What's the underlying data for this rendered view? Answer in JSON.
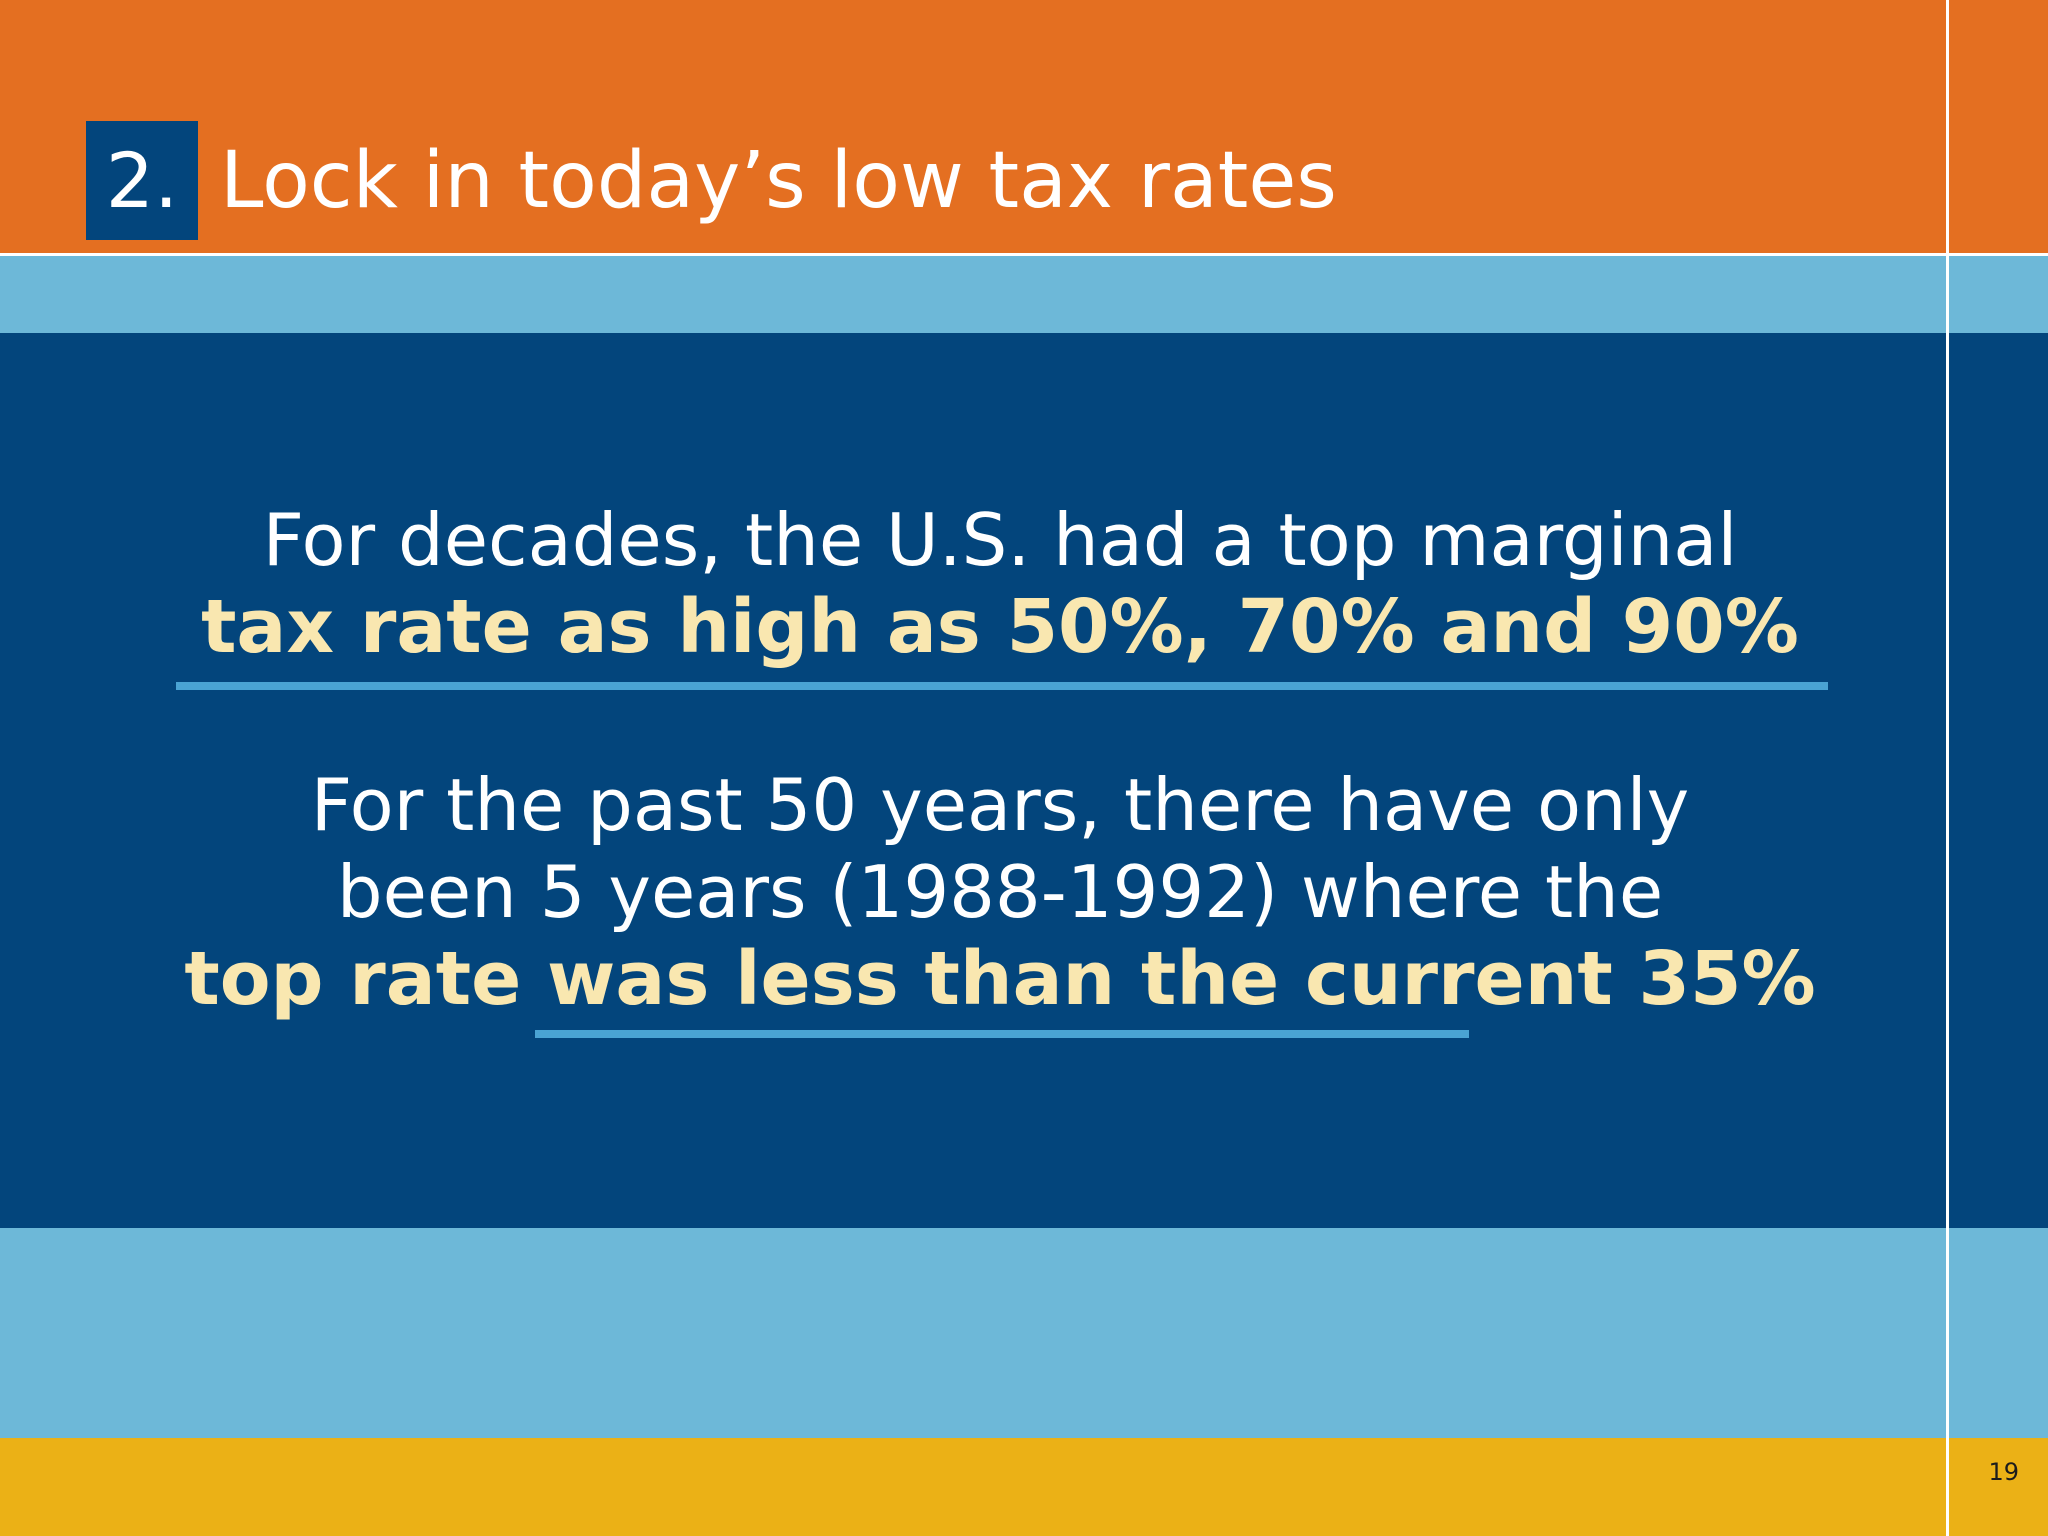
{
  "slide": {
    "title_number": "2.",
    "title": "Lock in today’s low tax rates",
    "paragraph_1": {
      "line_1": "For decades, the U.S. had a top marginal",
      "line_2": "tax rate as high as 50%, 70% and 90%"
    },
    "paragraph_2": {
      "line_1": "For the past 50 years, there have only",
      "line_2": "been 5 years (1988-1992) where the",
      "line_3": "top rate was less than the current 35%"
    },
    "page_number": "19"
  },
  "colors": {
    "header_orange": "#e46f21",
    "light_blue": "#6db8d8",
    "main_navy": "#03457c",
    "footer_gold": "#ebb116",
    "title_box_navy": "#03457c",
    "highlight_text": "#f9e7b0",
    "underline_blue": "#4aa3d3",
    "divider_white": "#ffffff"
  }
}
